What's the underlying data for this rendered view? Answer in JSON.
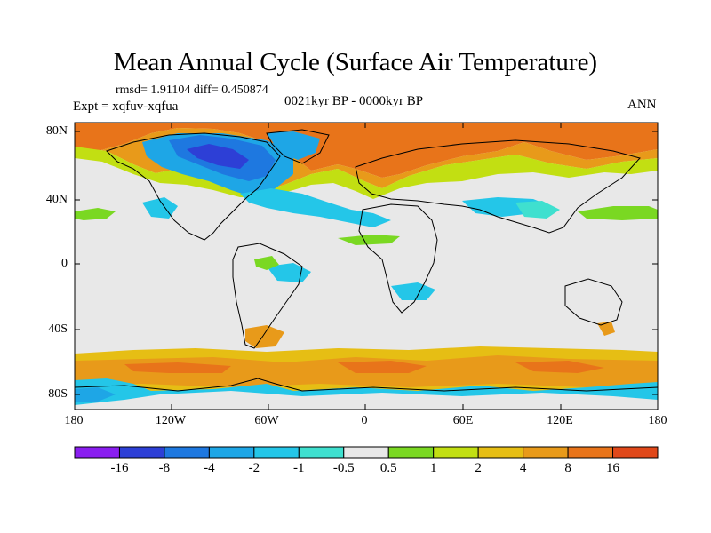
{
  "title": "Mean Annual Cycle (Surface Air Temperature)",
  "stats": "rmsd= 1.91104 diff= 0.450874",
  "experiment": "Expt = xqfuv-xqfua",
  "period": "0021kyr BP - 0000kyr BP",
  "season": "ANN",
  "lat_labels": [
    "80N",
    "40N",
    "0",
    "40S",
    "80S"
  ],
  "lon_labels": [
    "180",
    "120W",
    "60W",
    "0",
    "60E",
    "120E",
    "180"
  ],
  "colorbar": {
    "labels": [
      "-16",
      "-8",
      "-4",
      "-2",
      "-1",
      "-0.5",
      "0.5",
      "1",
      "2",
      "4",
      "8",
      "16"
    ],
    "colors": [
      "#8a1ef0",
      "#2d3fd6",
      "#1e78e0",
      "#1ea6e6",
      "#24c6e8",
      "#3fe0cf",
      "#e8e8e8",
      "#7ad822",
      "#c2df12",
      "#e6be14",
      "#e89a1a",
      "#e8741a",
      "#e0481a"
    ]
  },
  "map_regions": [
    {
      "name": "arctic-warm",
      "color": "#e8741a"
    },
    {
      "name": "laurentide-cold",
      "color": "#1e78e0"
    },
    {
      "name": "north-atlantic-cool",
      "color": "#24c6e8"
    },
    {
      "name": "southern-ocean-warm",
      "color": "#e89a1a"
    },
    {
      "name": "antarctic-coast-cool",
      "color": "#1ea6e6"
    }
  ]
}
